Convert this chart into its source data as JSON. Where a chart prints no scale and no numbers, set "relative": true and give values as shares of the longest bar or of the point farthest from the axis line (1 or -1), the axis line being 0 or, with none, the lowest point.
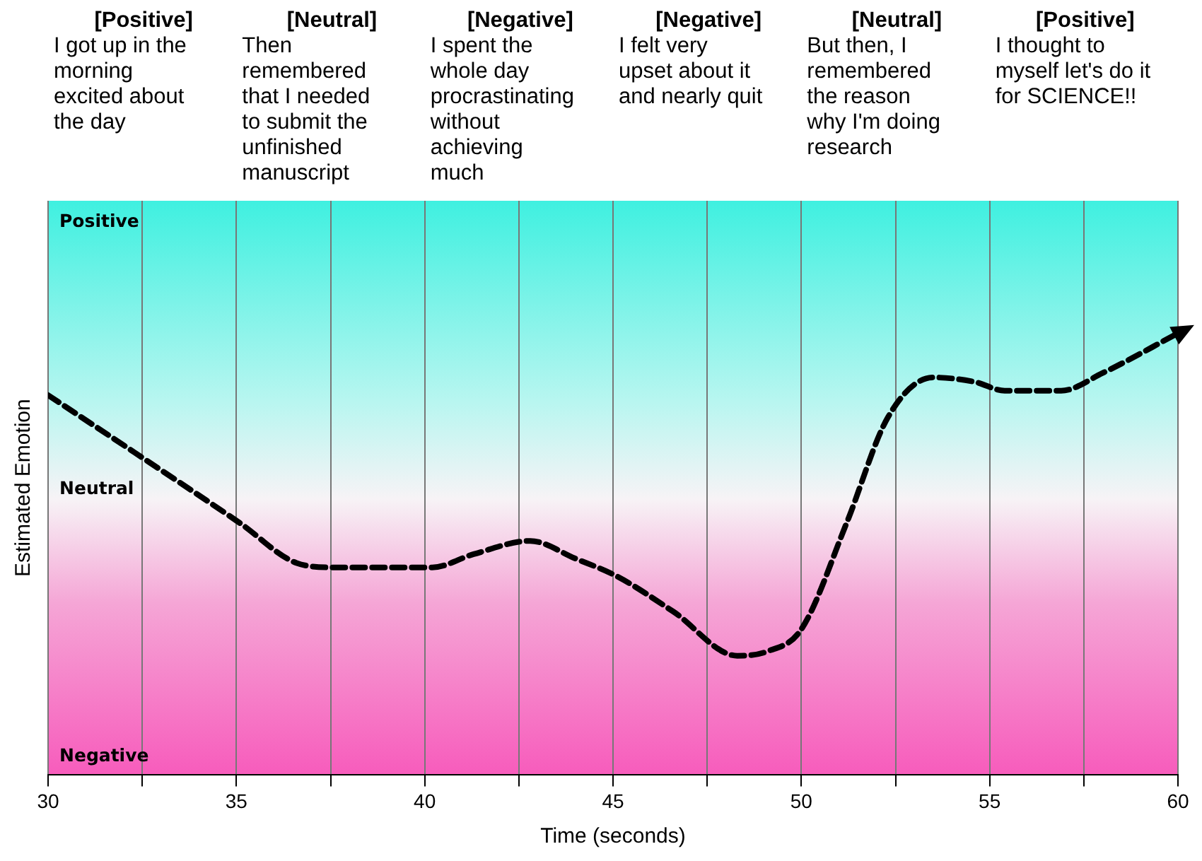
{
  "chart_data": {
    "type": "line",
    "xlabel": "Time (seconds)",
    "ylabel": "Estimated Emotion",
    "relative": true,
    "annotations": [
      "[Positive]\nI got up in the\nmorning\nexcited about\nthe day",
      "[Neutral]\nThen\nremembered\nthat I needed\nto submit the\nunfinished\nmanuscript",
      "[Negative]\nI spent the\nwhole day\nprocrastinating\nwithout\nachieving\nmuch",
      "[Negative]\nI felt very\nupset about it\nand nearly quit",
      "[Neutral]\nBut then, I\nremembered\nthe reason\nwhy I'm doing\nresearch",
      "[Positive]\nI thought to\nmyself let's do it\nfor SCIENCE!!",
      "Positive",
      "Neutral",
      "Negative"
    ],
    "x": [
      30,
      32.3,
      35.1,
      36.6,
      37.6,
      40.2,
      41.3,
      42.8,
      44.0,
      45.1,
      46.6,
      48.3,
      49.1,
      50.0,
      51.2,
      52.3,
      53.5,
      54.6,
      55.4,
      56.9,
      58.0,
      60
    ],
    "series": [
      {
        "color": "#000000",
        "values": [
          0.86,
          0.73,
          0.57,
          0.48,
          0.47,
          0.47,
          0.5,
          0.53,
          0.49,
          0.45,
          0.37,
          0.27,
          0.28,
          0.33,
          0.57,
          0.81,
          0.9,
          0.89,
          0.87,
          0.87,
          0.91,
          1
        ]
      }
    ],
    "xlim": [
      30,
      60
    ],
    "xticks": [
      30,
      {
        "value": 32.5,
        "label": null
      },
      35,
      {
        "value": 37.5,
        "label": null
      },
      40,
      {
        "value": 42.5,
        "label": null
      },
      45,
      {
        "value": 47.5,
        "label": null
      },
      50,
      {
        "value": 52.5,
        "label": null
      },
      55,
      {
        "value": 57.5,
        "label": null
      },
      60
    ],
    "grid": "x",
    "legend": false,
    "marker": "none",
    "line_style": "dashed"
  }
}
